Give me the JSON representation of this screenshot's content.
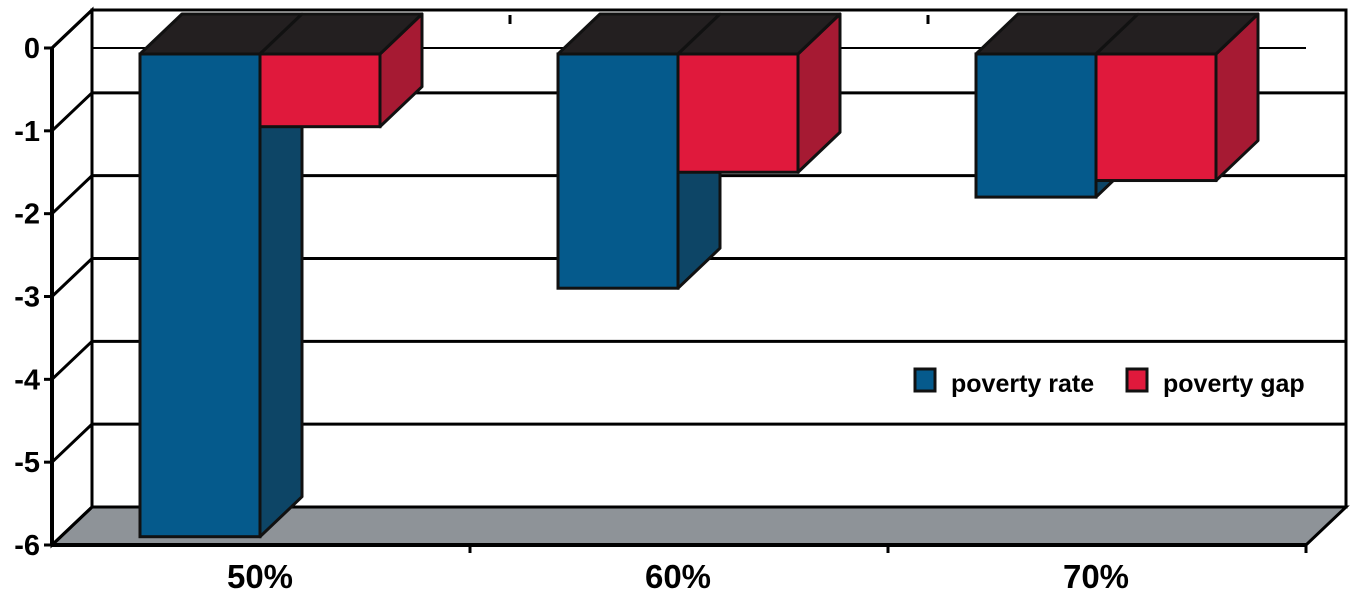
{
  "chart_data": {
    "type": "bar",
    "categories": [
      "50%",
      "60%",
      "70%"
    ],
    "series": [
      {
        "name": "poverty rate",
        "values": [
          -5.9,
          -2.9,
          -1.8
        ],
        "color": "#055a8c"
      },
      {
        "name": "poverty gap",
        "values": [
          -0.95,
          -1.5,
          -1.6
        ],
        "color": "#e0193c"
      }
    ],
    "ylim": [
      -6,
      0
    ],
    "yticks": [
      "0",
      "-1",
      "-2",
      "-3",
      "-4",
      "-5",
      "-6"
    ],
    "grid": true,
    "legend": "right",
    "style": "3d",
    "colors": {
      "rate_side": "#0d4566",
      "gap_side": "#a61a33",
      "top_dark": "#231f20",
      "floor": "#8e9398",
      "axis": "#000000"
    }
  }
}
